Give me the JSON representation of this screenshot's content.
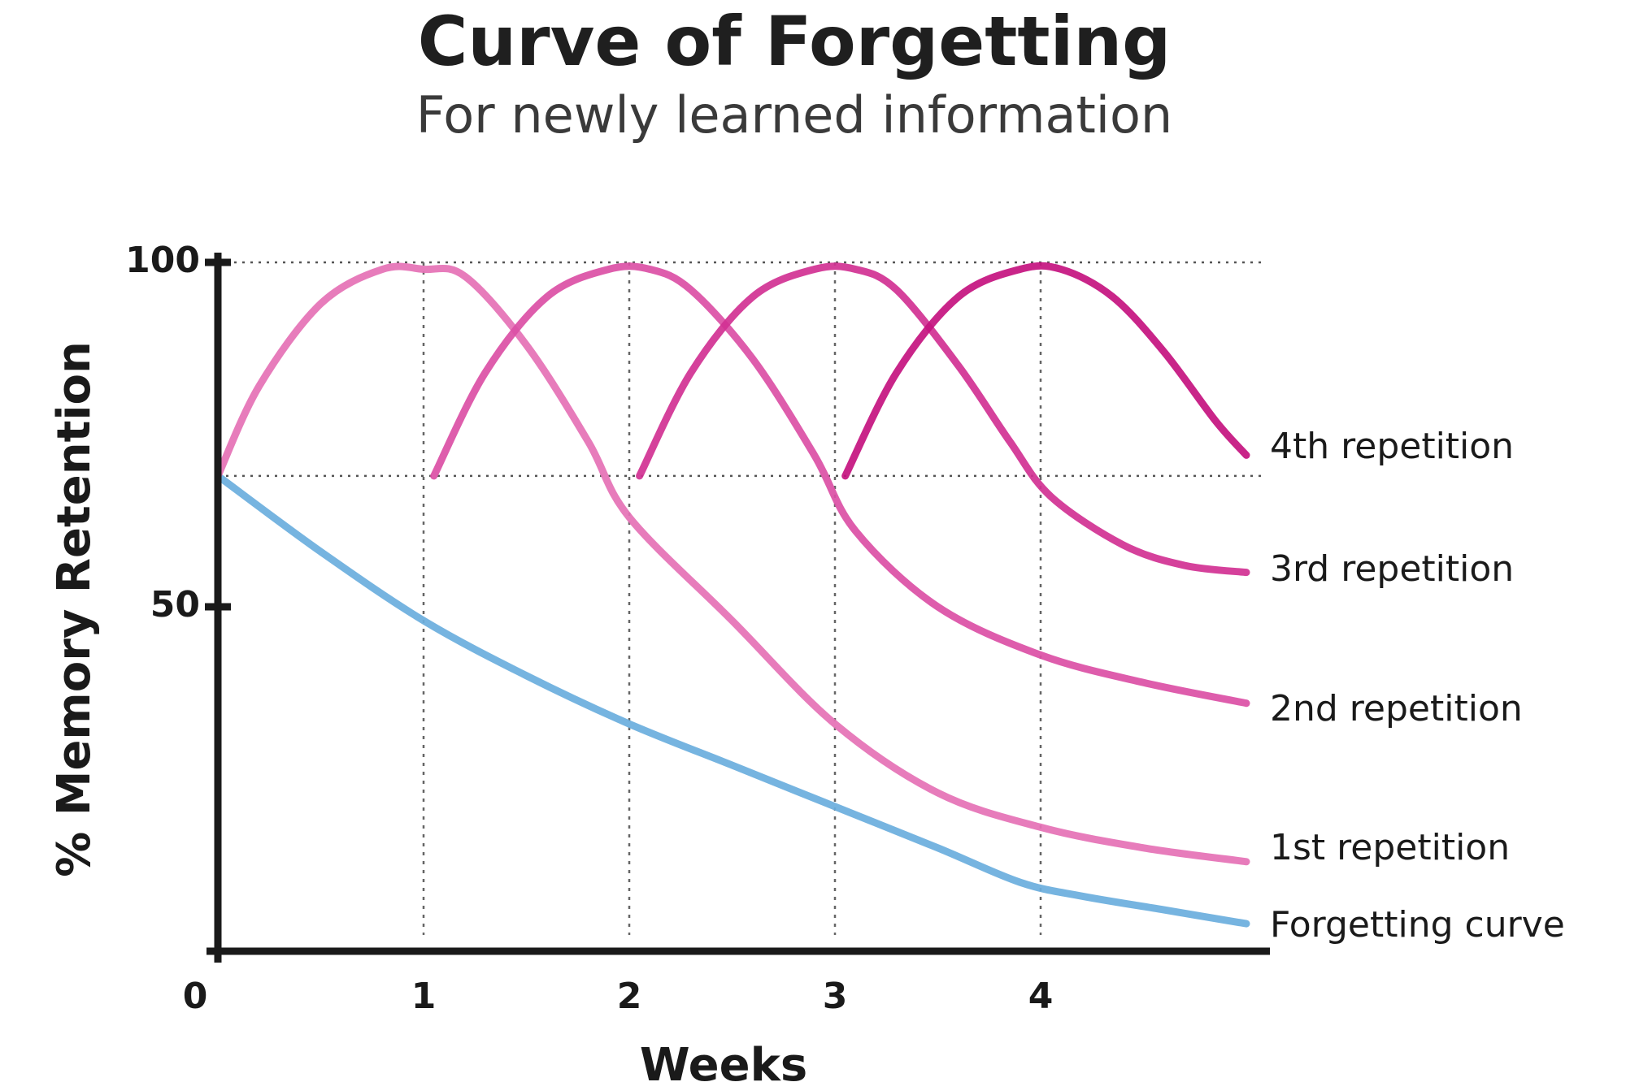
{
  "chart_data": {
    "type": "line",
    "title": "Curve of Forgetting",
    "subtitle": "For newly learned information",
    "xlabel": "Weeks",
    "ylabel": "% Memory Retention",
    "xlim": [
      0,
      5
    ],
    "ylim": [
      0,
      100
    ],
    "x_ticks": [
      "0",
      "1",
      "2",
      "3",
      "4"
    ],
    "y_ticks": [
      "100",
      "50"
    ],
    "reference_lines_y": [
      100,
      69
    ],
    "reference_lines_x": [
      1,
      2,
      3,
      4
    ],
    "grid": "dotted",
    "series": [
      {
        "name": "Forgetting curve",
        "color": "#6aaedd",
        "points": [
          [
            0,
            69
          ],
          [
            0.5,
            58
          ],
          [
            1,
            48
          ],
          [
            1.5,
            40
          ],
          [
            2,
            33
          ],
          [
            2.5,
            27
          ],
          [
            3,
            21
          ],
          [
            3.5,
            15
          ],
          [
            3.9,
            10
          ],
          [
            4.2,
            8
          ],
          [
            4.6,
            6
          ],
          [
            5,
            4
          ]
        ]
      },
      {
        "name": "1st repetition",
        "color": "#e571b5",
        "points": [
          [
            0,
            69
          ],
          [
            0.2,
            82
          ],
          [
            0.5,
            94
          ],
          [
            0.8,
            99
          ],
          [
            1.0,
            99
          ],
          [
            1.2,
            98
          ],
          [
            1.5,
            88
          ],
          [
            1.8,
            74
          ],
          [
            2.0,
            63
          ],
          [
            2.5,
            48
          ],
          [
            3.0,
            33
          ],
          [
            3.5,
            23
          ],
          [
            4.0,
            18
          ],
          [
            4.5,
            15
          ],
          [
            5.0,
            13
          ]
        ]
      },
      {
        "name": "2nd repetition",
        "color": "#db4fa5",
        "points": [
          [
            1.05,
            69
          ],
          [
            1.3,
            84
          ],
          [
            1.6,
            95
          ],
          [
            1.9,
            99
          ],
          [
            2.1,
            99
          ],
          [
            2.3,
            96
          ],
          [
            2.6,
            86
          ],
          [
            2.9,
            72
          ],
          [
            3.1,
            61
          ],
          [
            3.5,
            50
          ],
          [
            4.0,
            43
          ],
          [
            4.5,
            39
          ],
          [
            5.0,
            36
          ]
        ]
      },
      {
        "name": "3rd repetition",
        "color": "#d13193",
        "points": [
          [
            2.05,
            69
          ],
          [
            2.3,
            84
          ],
          [
            2.6,
            95
          ],
          [
            2.9,
            99
          ],
          [
            3.1,
            99
          ],
          [
            3.3,
            96
          ],
          [
            3.6,
            85
          ],
          [
            3.85,
            74
          ],
          [
            4.05,
            66
          ],
          [
            4.4,
            59
          ],
          [
            4.7,
            56
          ],
          [
            5.0,
            55
          ]
        ]
      },
      {
        "name": "4th repetition",
        "color": "#c4127f",
        "points": [
          [
            3.05,
            69
          ],
          [
            3.3,
            84
          ],
          [
            3.6,
            95
          ],
          [
            3.9,
            99
          ],
          [
            4.1,
            99
          ],
          [
            4.35,
            95
          ],
          [
            4.6,
            87
          ],
          [
            4.85,
            77
          ],
          [
            5.0,
            72
          ]
        ]
      }
    ]
  }
}
